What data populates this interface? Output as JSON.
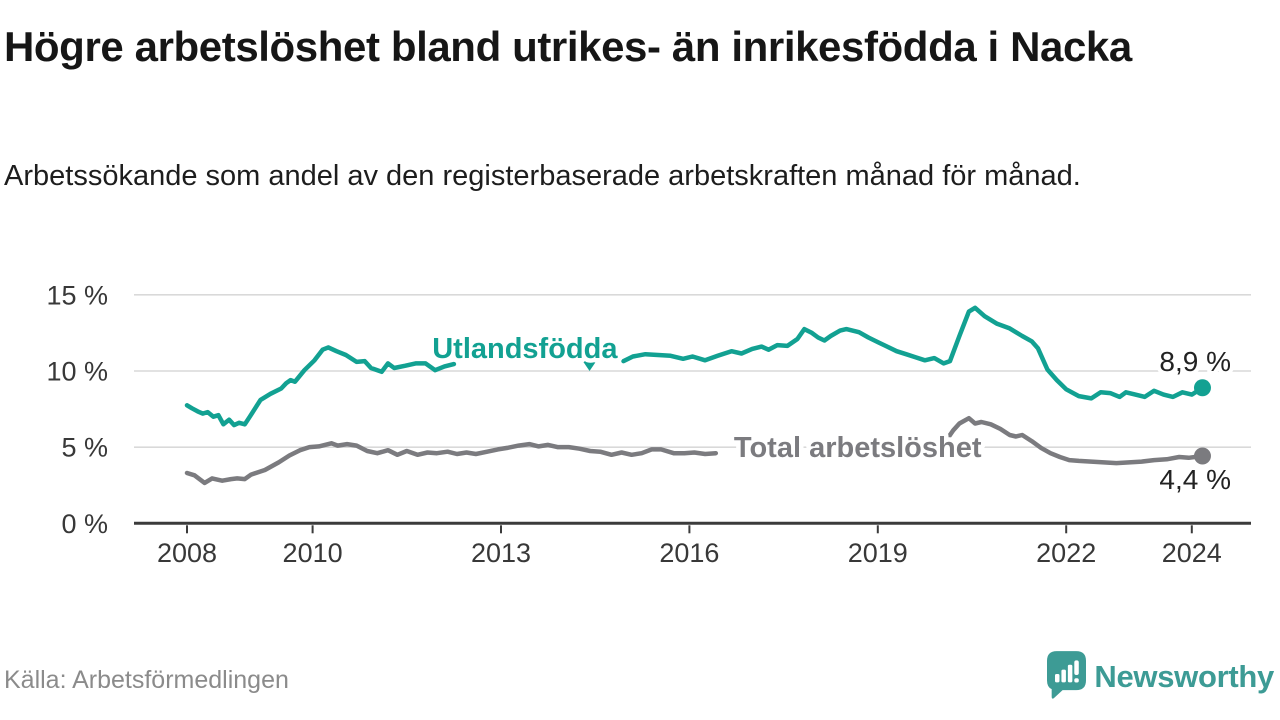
{
  "header": {
    "title": "Högre arbetslöshet bland utrikes- än inrikesfödda i Nacka",
    "subtitle": "Arbetssökande som andel av den registerbaserade arbetskraften månad för månad."
  },
  "footer": {
    "source": "Källa: Arbetsförmedlingen",
    "brand": "Newsworthy"
  },
  "colors": {
    "background": "#ffffff",
    "title_text": "#161616",
    "subtitle_text": "#1d1d1d",
    "axis": "#3b3b3b",
    "tick_text": "#383838",
    "grid": "#d9d9d9",
    "end_label_text": "#222222",
    "series_foreign": "#12a192",
    "series_total": "#7b7b7f",
    "source_text": "#8b8b8b",
    "brand_teal": "#3d9b95"
  },
  "chart_data": {
    "type": "line",
    "unit": "%",
    "grid": "horizontal-only",
    "x_axis": {
      "range_years": [
        2008,
        2024.2
      ],
      "ticks": [
        {
          "v": 2008,
          "label": "2008"
        },
        {
          "v": 2010,
          "label": "2010"
        },
        {
          "v": 2013,
          "label": "2013"
        },
        {
          "v": 2016,
          "label": "2016"
        },
        {
          "v": 2019,
          "label": "2019"
        },
        {
          "v": 2022,
          "label": "2022"
        },
        {
          "v": 2024,
          "label": "2024"
        }
      ]
    },
    "y_axis": {
      "range": [
        0,
        16
      ],
      "ticks": [
        {
          "v": 0,
          "label": "0 %"
        },
        {
          "v": 5,
          "label": "5 %"
        },
        {
          "v": 10,
          "label": "10 %"
        },
        {
          "v": 15,
          "label": "15 %"
        }
      ]
    },
    "series": [
      {
        "id": "utlandsfodda",
        "name": "Utlandsfödda",
        "color": "#12a192",
        "line_label": {
          "x": 2013.38,
          "y": 10.85
        },
        "pointer_marker": {
          "x": 2014.41,
          "y": 10.0
        },
        "end": {
          "x": 2024.17,
          "y": 8.9,
          "label": "8,9 %",
          "label_dy": -17
        },
        "segments": [
          [
            [
              2008.0,
              7.75
            ],
            [
              2008.08,
              7.55
            ],
            [
              2008.17,
              7.35
            ],
            [
              2008.25,
              7.2
            ],
            [
              2008.33,
              7.3
            ],
            [
              2008.42,
              7.0
            ],
            [
              2008.5,
              7.1
            ],
            [
              2008.58,
              6.5
            ],
            [
              2008.67,
              6.8
            ],
            [
              2008.75,
              6.45
            ],
            [
              2008.83,
              6.6
            ],
            [
              2008.92,
              6.5
            ],
            [
              2009.0,
              7.0
            ],
            [
              2009.17,
              8.1
            ],
            [
              2009.33,
              8.5
            ],
            [
              2009.5,
              8.85
            ],
            [
              2009.58,
              9.2
            ],
            [
              2009.65,
              9.4
            ],
            [
              2009.72,
              9.3
            ],
            [
              2009.87,
              10.05
            ],
            [
              2010.03,
              10.7
            ],
            [
              2010.16,
              11.4
            ],
            [
              2010.25,
              11.55
            ],
            [
              2010.38,
              11.3
            ],
            [
              2010.53,
              11.05
            ],
            [
              2010.7,
              10.6
            ],
            [
              2010.83,
              10.65
            ],
            [
              2010.93,
              10.2
            ],
            [
              2011.1,
              9.95
            ],
            [
              2011.2,
              10.5
            ],
            [
              2011.3,
              10.2
            ],
            [
              2011.48,
              10.35
            ],
            [
              2011.64,
              10.5
            ],
            [
              2011.8,
              10.5
            ],
            [
              2011.95,
              10.05
            ],
            [
              2012.1,
              10.3
            ],
            [
              2012.25,
              10.45
            ]
          ],
          [
            [
              2014.95,
              10.65
            ],
            [
              2015.1,
              10.95
            ],
            [
              2015.3,
              11.1
            ],
            [
              2015.5,
              11.05
            ],
            [
              2015.7,
              11.0
            ],
            [
              2015.9,
              10.8
            ],
            [
              2016.05,
              10.95
            ],
            [
              2016.25,
              10.7
            ],
            [
              2016.45,
              11.0
            ],
            [
              2016.67,
              11.3
            ],
            [
              2016.83,
              11.15
            ],
            [
              2017.0,
              11.45
            ],
            [
              2017.15,
              11.6
            ],
            [
              2017.26,
              11.4
            ],
            [
              2017.4,
              11.7
            ],
            [
              2017.56,
              11.65
            ],
            [
              2017.72,
              12.1
            ],
            [
              2017.83,
              12.75
            ],
            [
              2017.95,
              12.5
            ],
            [
              2018.05,
              12.2
            ],
            [
              2018.15,
              12.0
            ],
            [
              2018.25,
              12.3
            ],
            [
              2018.4,
              12.65
            ],
            [
              2018.5,
              12.75
            ],
            [
              2018.7,
              12.55
            ],
            [
              2018.85,
              12.2
            ],
            [
              2019.0,
              11.9
            ],
            [
              2019.15,
              11.6
            ],
            [
              2019.3,
              11.3
            ],
            [
              2019.45,
              11.1
            ],
            [
              2019.6,
              10.9
            ],
            [
              2019.75,
              10.7
            ],
            [
              2019.9,
              10.85
            ],
            [
              2020.05,
              10.5
            ],
            [
              2020.15,
              10.65
            ],
            [
              2020.3,
              12.3
            ],
            [
              2020.45,
              13.9
            ],
            [
              2020.55,
              14.15
            ],
            [
              2020.7,
              13.6
            ],
            [
              2020.9,
              13.1
            ],
            [
              2021.1,
              12.8
            ],
            [
              2021.3,
              12.3
            ],
            [
              2021.45,
              11.95
            ],
            [
              2021.55,
              11.5
            ],
            [
              2021.7,
              10.1
            ],
            [
              2021.85,
              9.4
            ],
            [
              2022.0,
              8.8
            ],
            [
              2022.2,
              8.35
            ],
            [
              2022.4,
              8.2
            ],
            [
              2022.55,
              8.6
            ],
            [
              2022.7,
              8.55
            ],
            [
              2022.85,
              8.3
            ],
            [
              2022.95,
              8.6
            ],
            [
              2023.1,
              8.45
            ],
            [
              2023.25,
              8.3
            ],
            [
              2023.4,
              8.7
            ],
            [
              2023.55,
              8.45
            ],
            [
              2023.7,
              8.3
            ],
            [
              2023.85,
              8.6
            ],
            [
              2024.0,
              8.45
            ],
            [
              2024.17,
              8.9
            ]
          ]
        ]
      },
      {
        "id": "total",
        "name": "Total arbetslöshet",
        "color": "#7b7b7f",
        "line_label": {
          "x": 2018.68,
          "y": 4.35
        },
        "pointer_marker": null,
        "end": {
          "x": 2024.17,
          "y": 4.42,
          "label": "4,4 %",
          "label_dy": 33
        },
        "segments": [
          [
            [
              2008.0,
              3.3
            ],
            [
              2008.12,
              3.15
            ],
            [
              2008.28,
              2.65
            ],
            [
              2008.4,
              2.95
            ],
            [
              2008.56,
              2.8
            ],
            [
              2008.7,
              2.9
            ],
            [
              2008.8,
              2.95
            ],
            [
              2008.92,
              2.9
            ],
            [
              2009.02,
              3.2
            ],
            [
              2009.24,
              3.5
            ],
            [
              2009.46,
              4.0
            ],
            [
              2009.63,
              4.45
            ],
            [
              2009.8,
              4.8
            ],
            [
              2009.95,
              5.0
            ],
            [
              2010.1,
              5.05
            ],
            [
              2010.3,
              5.25
            ],
            [
              2010.4,
              5.1
            ],
            [
              2010.55,
              5.2
            ],
            [
              2010.7,
              5.1
            ],
            [
              2010.87,
              4.75
            ],
            [
              2011.03,
              4.6
            ],
            [
              2011.2,
              4.8
            ],
            [
              2011.35,
              4.5
            ],
            [
              2011.5,
              4.75
            ],
            [
              2011.67,
              4.5
            ],
            [
              2011.83,
              4.65
            ],
            [
              2011.98,
              4.6
            ],
            [
              2012.15,
              4.7
            ],
            [
              2012.3,
              4.55
            ],
            [
              2012.45,
              4.65
            ],
            [
              2012.6,
              4.55
            ],
            [
              2012.78,
              4.7
            ],
            [
              2012.95,
              4.85
            ],
            [
              2013.1,
              4.95
            ],
            [
              2013.28,
              5.1
            ],
            [
              2013.45,
              5.2
            ],
            [
              2013.6,
              5.05
            ],
            [
              2013.75,
              5.15
            ],
            [
              2013.9,
              5.0
            ],
            [
              2014.08,
              5.0
            ],
            [
              2014.25,
              4.9
            ],
            [
              2014.42,
              4.75
            ],
            [
              2014.58,
              4.7
            ],
            [
              2014.76,
              4.5
            ],
            [
              2014.92,
              4.65
            ],
            [
              2015.08,
              4.5
            ],
            [
              2015.24,
              4.6
            ],
            [
              2015.4,
              4.85
            ],
            [
              2015.55,
              4.85
            ],
            [
              2015.75,
              4.6
            ],
            [
              2015.92,
              4.6
            ],
            [
              2016.08,
              4.65
            ],
            [
              2016.25,
              4.55
            ],
            [
              2016.42,
              4.6
            ]
          ],
          [
            [
              2019.85,
              4.8
            ],
            [
              2020.0,
              5.0
            ],
            [
              2020.1,
              5.5
            ],
            [
              2020.2,
              6.1
            ],
            [
              2020.3,
              6.55
            ],
            [
              2020.45,
              6.9
            ],
            [
              2020.55,
              6.55
            ],
            [
              2020.65,
              6.65
            ],
            [
              2020.8,
              6.5
            ],
            [
              2020.95,
              6.2
            ],
            [
              2021.1,
              5.8
            ],
            [
              2021.2,
              5.7
            ],
            [
              2021.3,
              5.8
            ],
            [
              2021.45,
              5.4
            ],
            [
              2021.6,
              4.95
            ],
            [
              2021.75,
              4.6
            ],
            [
              2021.9,
              4.35
            ],
            [
              2022.05,
              4.15
            ],
            [
              2022.2,
              4.1
            ],
            [
              2022.4,
              4.05
            ],
            [
              2022.6,
              4.0
            ],
            [
              2022.8,
              3.95
            ],
            [
              2023.0,
              4.0
            ],
            [
              2023.2,
              4.05
            ],
            [
              2023.4,
              4.15
            ],
            [
              2023.6,
              4.2
            ],
            [
              2023.8,
              4.35
            ],
            [
              2023.95,
              4.3
            ],
            [
              2024.17,
              4.42
            ]
          ]
        ]
      }
    ]
  }
}
